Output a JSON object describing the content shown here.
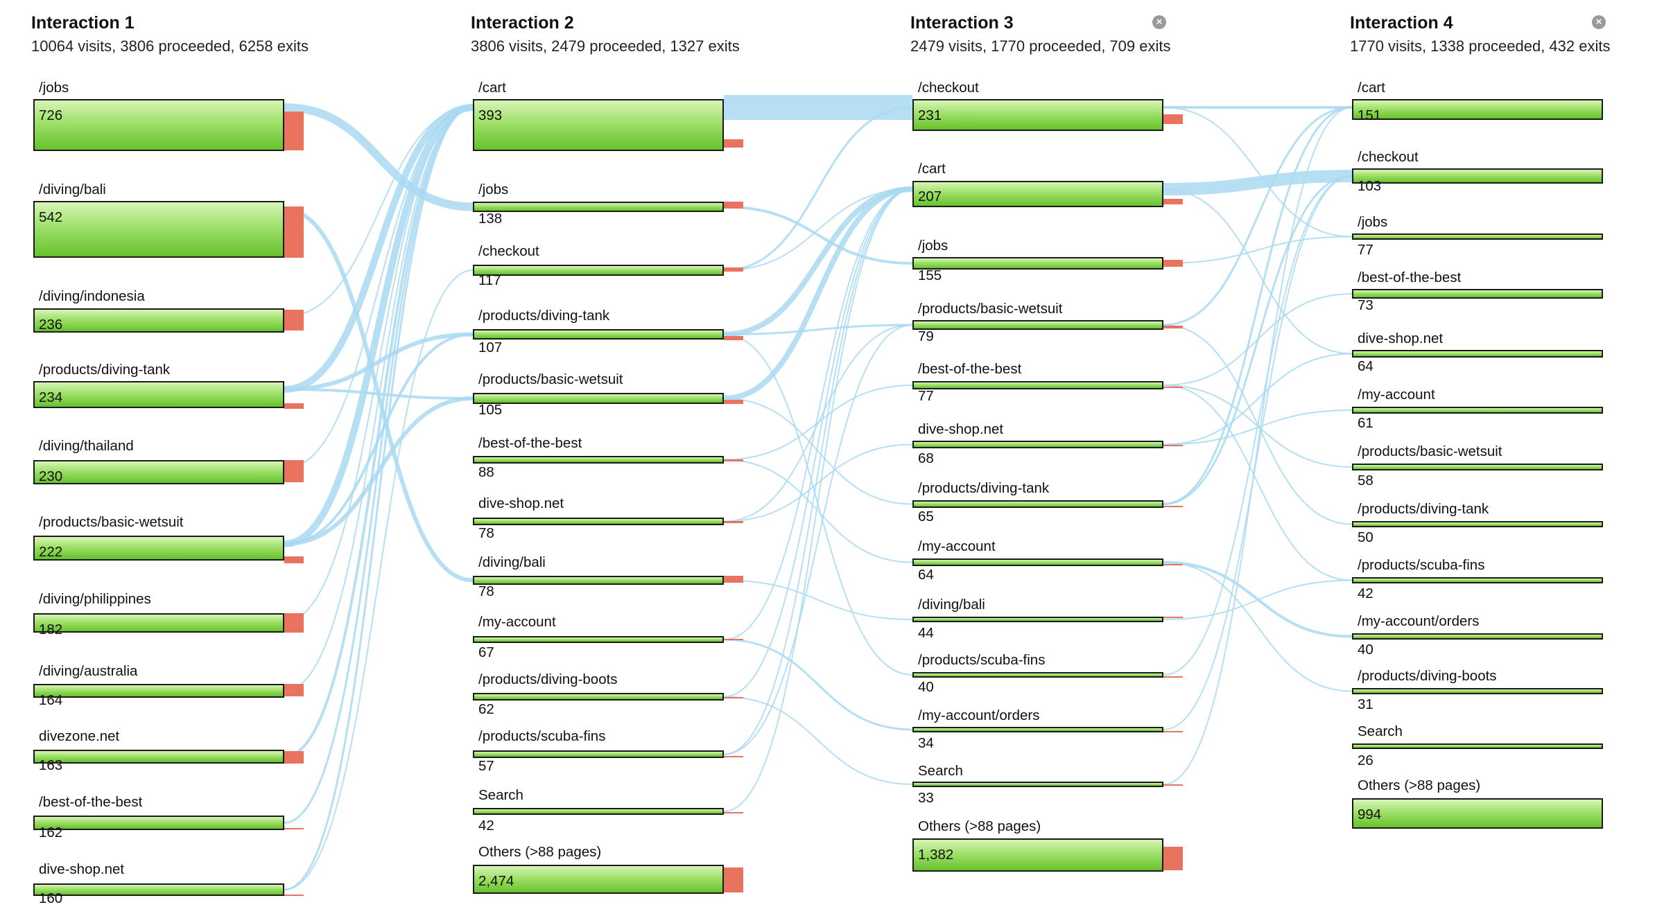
{
  "colors": {
    "node_fill_top": "#d8f5b7",
    "node_fill_bottom": "#67c22d",
    "node_border": "#1a1a1a",
    "exit": "#e8735f",
    "flow": "#a9d9f2"
  },
  "icons": {
    "close": "close-icon"
  },
  "columns": [
    {
      "title": "Interaction 1",
      "summary": "10064 visits, 3806 proceeded, 6258 exits",
      "closable": false,
      "nodes": [
        {
          "name": "/jobs",
          "count": "726"
        },
        {
          "name": "/diving/bali",
          "count": "542"
        },
        {
          "name": "/diving/indonesia",
          "count": "236"
        },
        {
          "name": "/products/diving-tank",
          "count": "234"
        },
        {
          "name": "/diving/thailand",
          "count": "230"
        },
        {
          "name": "/products/basic-wetsuit",
          "count": "222"
        },
        {
          "name": "/diving/philippines",
          "count": "182"
        },
        {
          "name": "/diving/australia",
          "count": "164"
        },
        {
          "name": "divezone.net",
          "count": "163"
        },
        {
          "name": "/best-of-the-best",
          "count": "162"
        },
        {
          "name": "dive-shop.net",
          "count": "160"
        }
      ]
    },
    {
      "title": "Interaction 2",
      "summary": "3806 visits, 2479 proceeded, 1327 exits",
      "closable": false,
      "nodes": [
        {
          "name": "/cart",
          "count": "393"
        },
        {
          "name": "/jobs",
          "count": "138"
        },
        {
          "name": "/checkout",
          "count": "117"
        },
        {
          "name": "/products/diving-tank",
          "count": "107"
        },
        {
          "name": "/products/basic-wetsuit",
          "count": "105"
        },
        {
          "name": "/best-of-the-best",
          "count": "88"
        },
        {
          "name": "dive-shop.net",
          "count": "78"
        },
        {
          "name": "/diving/bali",
          "count": "78"
        },
        {
          "name": "/my-account",
          "count": "67"
        },
        {
          "name": "/products/diving-boots",
          "count": "62"
        },
        {
          "name": "/products/scuba-fins",
          "count": "57"
        },
        {
          "name": "Search",
          "count": "42"
        },
        {
          "name": "Others (>88 pages)",
          "count": "2,474"
        }
      ]
    },
    {
      "title": "Interaction 3",
      "summary": "2479 visits, 1770 proceeded, 709 exits",
      "closable": true,
      "nodes": [
        {
          "name": "/checkout",
          "count": "231"
        },
        {
          "name": "/cart",
          "count": "207"
        },
        {
          "name": "/jobs",
          "count": "155"
        },
        {
          "name": "/products/basic-wetsuit",
          "count": "79"
        },
        {
          "name": "/best-of-the-best",
          "count": "77"
        },
        {
          "name": "dive-shop.net",
          "count": "68"
        },
        {
          "name": "/products/diving-tank",
          "count": "65"
        },
        {
          "name": "/my-account",
          "count": "64"
        },
        {
          "name": "/diving/bali",
          "count": "44"
        },
        {
          "name": "/products/scuba-fins",
          "count": "40"
        },
        {
          "name": "/my-account/orders",
          "count": "34"
        },
        {
          "name": "Search",
          "count": "33"
        },
        {
          "name": "Others (>88 pages)",
          "count": "1,382"
        }
      ]
    },
    {
      "title": "Interaction 4",
      "summary": "1770 visits, 1338 proceeded, 432 exits",
      "closable": true,
      "nodes": [
        {
          "name": "/cart",
          "count": "151"
        },
        {
          "name": "/checkout",
          "count": "103"
        },
        {
          "name": "/jobs",
          "count": "77"
        },
        {
          "name": "/best-of-the-best",
          "count": "73"
        },
        {
          "name": "dive-shop.net",
          "count": "64"
        },
        {
          "name": "/my-account",
          "count": "61"
        },
        {
          "name": "/products/basic-wetsuit",
          "count": "58"
        },
        {
          "name": "/products/diving-tank",
          "count": "50"
        },
        {
          "name": "/products/scuba-fins",
          "count": "42"
        },
        {
          "name": "/my-account/orders",
          "count": "40"
        },
        {
          "name": "/products/diving-boots",
          "count": "31"
        },
        {
          "name": "Search",
          "count": "26"
        },
        {
          "name": "Others (>88 pages)",
          "count": "994"
        }
      ]
    }
  ]
}
